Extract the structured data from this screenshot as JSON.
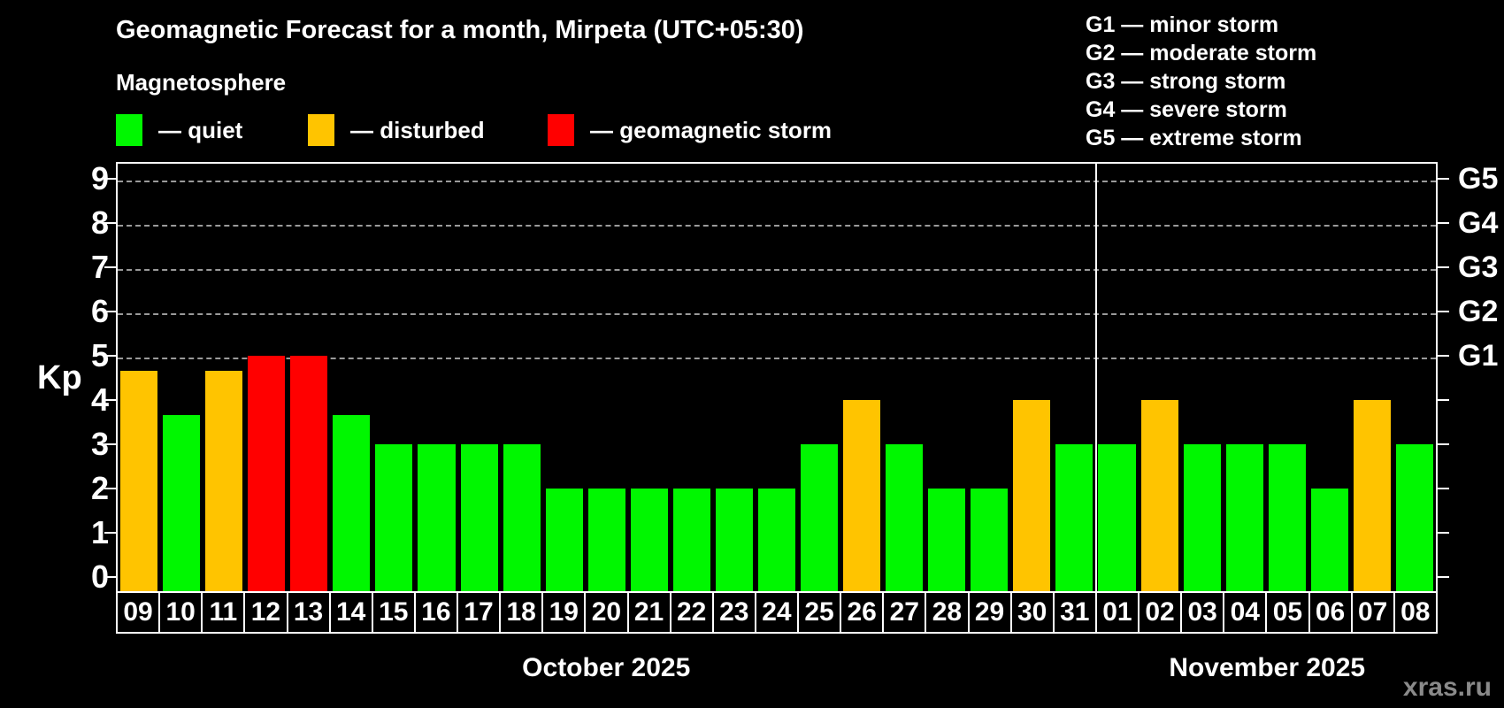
{
  "title": "Geomagnetic Forecast for a month, Mirpeta (UTC+05:30)",
  "subtitle": "Magnetosphere",
  "legend": {
    "items": [
      {
        "name": "quiet",
        "label": "— quiet",
        "color": "#00f700",
        "x": 131
      },
      {
        "name": "disturbed",
        "label": "— disturbed",
        "color": "#ffc400",
        "x": 348
      },
      {
        "name": "geomagnetic-storm",
        "label": "— geomagnetic storm",
        "color": "#ff0000",
        "x": 619
      }
    ]
  },
  "storm_scale": [
    {
      "code": "G1",
      "kp": 5,
      "label": "G1 — minor storm"
    },
    {
      "code": "G2",
      "kp": 6,
      "label": "G2 — moderate storm"
    },
    {
      "code": "G3",
      "kp": 7,
      "label": "G3 — strong storm"
    },
    {
      "code": "G4",
      "kp": 8,
      "label": "G4 — severe storm"
    },
    {
      "code": "G5",
      "kp": 9,
      "label": "G5 — extreme storm"
    }
  ],
  "watermark": "xras.ru",
  "chart_data": {
    "type": "bar",
    "ylabel": "Kp",
    "ylim": [
      0,
      9
    ],
    "yticks": [
      0,
      1,
      2,
      3,
      4,
      5,
      6,
      7,
      8,
      9
    ],
    "gridlines_kp": [
      5,
      6,
      7,
      8,
      9
    ],
    "grid": "dashed, only at storm levels 5-9",
    "legend_position": "top-left",
    "status_colors": {
      "quiet": "#00f700",
      "disturbed": "#ffc400",
      "storm": "#ff0000"
    },
    "months": [
      {
        "label": "October 2025",
        "days_count": 23
      },
      {
        "label": "November 2025",
        "days_count": 8
      }
    ],
    "categories": [
      "09",
      "10",
      "11",
      "12",
      "13",
      "14",
      "15",
      "16",
      "17",
      "18",
      "19",
      "20",
      "21",
      "22",
      "23",
      "24",
      "25",
      "26",
      "27",
      "28",
      "29",
      "30",
      "31",
      "01",
      "02",
      "03",
      "04",
      "05",
      "06",
      "07",
      "08"
    ],
    "days": [
      {
        "day": "09",
        "kp": 4.67,
        "status": "disturbed"
      },
      {
        "day": "10",
        "kp": 3.67,
        "status": "quiet"
      },
      {
        "day": "11",
        "kp": 4.67,
        "status": "disturbed"
      },
      {
        "day": "12",
        "kp": 5,
        "status": "storm"
      },
      {
        "day": "13",
        "kp": 5,
        "status": "storm"
      },
      {
        "day": "14",
        "kp": 3.67,
        "status": "quiet"
      },
      {
        "day": "15",
        "kp": 3,
        "status": "quiet"
      },
      {
        "day": "16",
        "kp": 3,
        "status": "quiet"
      },
      {
        "day": "17",
        "kp": 3,
        "status": "quiet"
      },
      {
        "day": "18",
        "kp": 3,
        "status": "quiet"
      },
      {
        "day": "19",
        "kp": 2,
        "status": "quiet"
      },
      {
        "day": "20",
        "kp": 2,
        "status": "quiet"
      },
      {
        "day": "21",
        "kp": 2,
        "status": "quiet"
      },
      {
        "day": "22",
        "kp": 2,
        "status": "quiet"
      },
      {
        "day": "23",
        "kp": 2,
        "status": "quiet"
      },
      {
        "day": "24",
        "kp": 2,
        "status": "quiet"
      },
      {
        "day": "25",
        "kp": 3,
        "status": "quiet"
      },
      {
        "day": "26",
        "kp": 4,
        "status": "disturbed"
      },
      {
        "day": "27",
        "kp": 3,
        "status": "quiet"
      },
      {
        "day": "28",
        "kp": 2,
        "status": "quiet"
      },
      {
        "day": "29",
        "kp": 2,
        "status": "quiet"
      },
      {
        "day": "30",
        "kp": 4,
        "status": "disturbed"
      },
      {
        "day": "31",
        "kp": 3,
        "status": "quiet"
      },
      {
        "day": "01",
        "kp": 3,
        "status": "quiet"
      },
      {
        "day": "02",
        "kp": 4,
        "status": "disturbed"
      },
      {
        "day": "03",
        "kp": 3,
        "status": "quiet"
      },
      {
        "day": "04",
        "kp": 3,
        "status": "quiet"
      },
      {
        "day": "05",
        "kp": 3,
        "status": "quiet"
      },
      {
        "day": "06",
        "kp": 2,
        "status": "quiet"
      },
      {
        "day": "07",
        "kp": 4,
        "status": "disturbed"
      },
      {
        "day": "08",
        "kp": 3,
        "status": "quiet"
      }
    ]
  }
}
